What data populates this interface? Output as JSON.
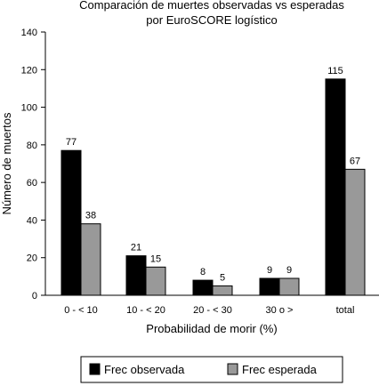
{
  "chart_data": {
    "type": "bar",
    "title": [
      "Comparación de muertes observadas vs esperadas",
      "por EuroSCORE logístico"
    ],
    "xlabel": "Probabilidad de morir (%)",
    "ylabel": "Número de muertos",
    "categories": [
      "0 - < 10",
      "10 - < 20",
      "20 - < 30",
      "30 o >",
      "total"
    ],
    "ylim": [
      0,
      140
    ],
    "yticks": [
      0,
      20,
      40,
      60,
      80,
      100,
      120,
      140
    ],
    "grid": false,
    "legend_position": "bottom",
    "series": [
      {
        "name": "Frec observada",
        "values": [
          77,
          21,
          8,
          9,
          115
        ],
        "color": "#000000"
      },
      {
        "name": "Frec esperada",
        "values": [
          38,
          15,
          5,
          9,
          67
        ],
        "color": "#999999"
      }
    ]
  }
}
